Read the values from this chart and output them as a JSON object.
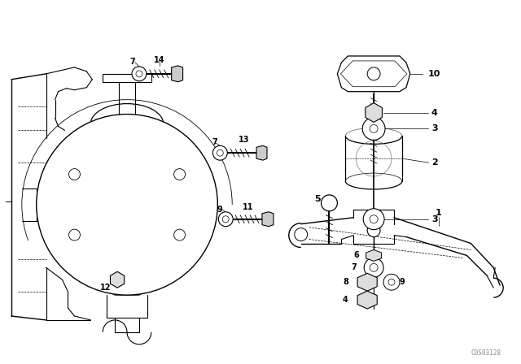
{
  "bg_color": "#ffffff",
  "line_color": "#000000",
  "fig_width": 6.4,
  "fig_height": 4.48,
  "dpi": 100,
  "watermark": "C0S03128",
  "watermark_color": "#888888"
}
